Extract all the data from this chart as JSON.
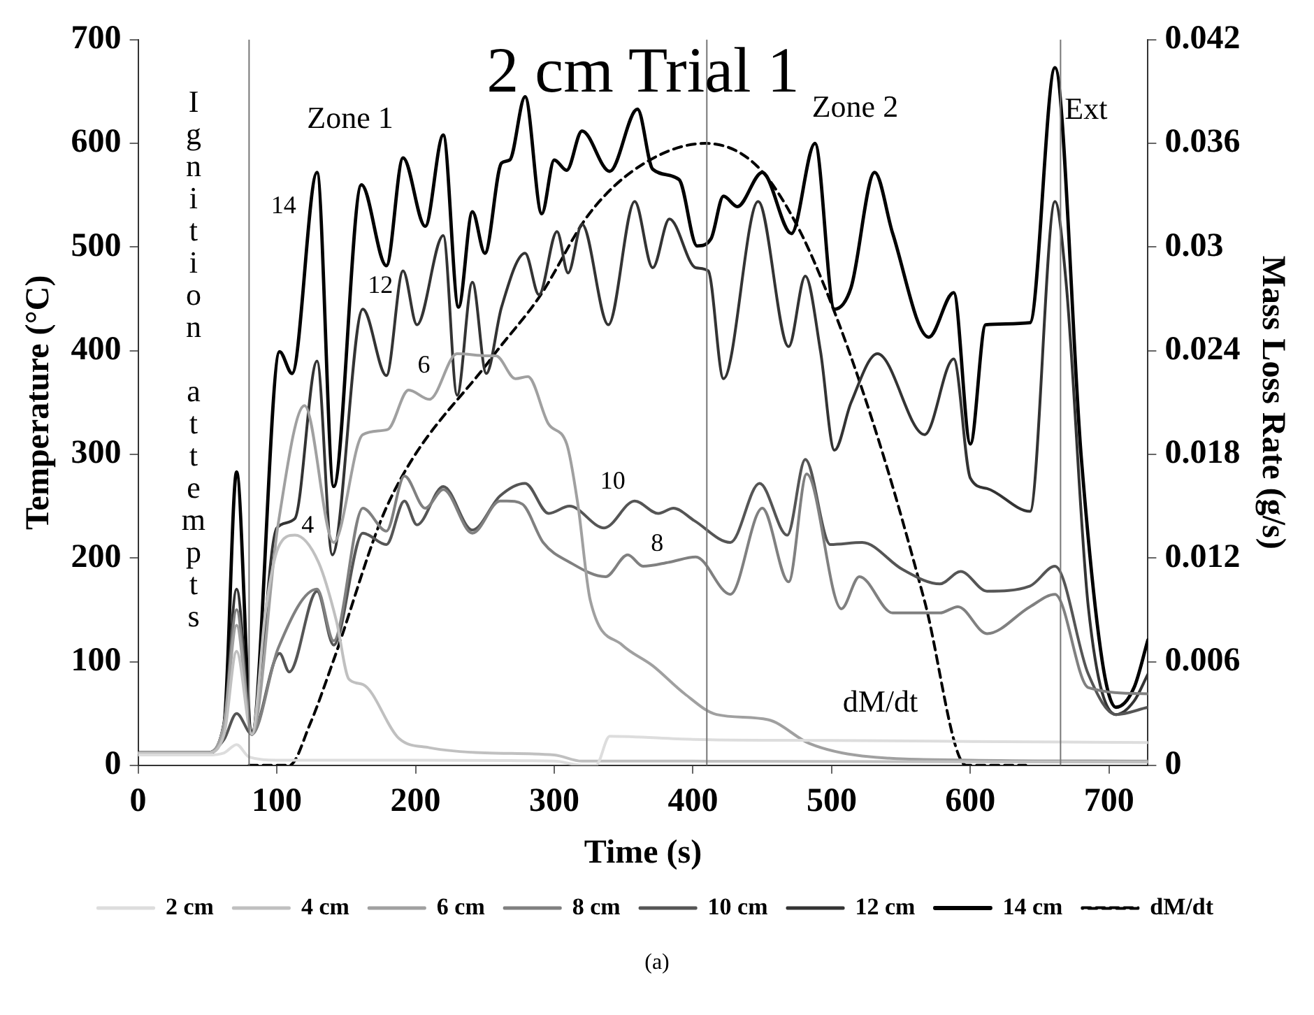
{
  "chart_data": {
    "type": "line",
    "title": "2 cm Trial 1",
    "xlabel": "Time (s)",
    "ylabel": "Temperature (°C)",
    "y2label": "Mass Loss Rate (g/s)",
    "xlim": [
      0,
      728
    ],
    "xticks": [
      0,
      100,
      200,
      300,
      400,
      500,
      600,
      700
    ],
    "ylim": [
      0,
      700
    ],
    "yticks": [
      0,
      100,
      200,
      300,
      400,
      500,
      600,
      700
    ],
    "y2lim": [
      0,
      0.042
    ],
    "y2ticks": [
      0,
      0.006,
      0.012,
      0.018,
      0.024,
      0.03,
      0.036,
      0.042
    ],
    "grid": false,
    "legend": "bottom",
    "marker": "none",
    "series": [
      {
        "name": "2 cm",
        "color": "#dddddd",
        "x": [
          0,
          50,
          62,
          71,
          80,
          100,
          200,
          300,
          320,
          330,
          340,
          400,
          500,
          600,
          728
        ],
        "values": [
          10,
          10,
          12,
          20,
          8,
          5,
          5,
          4,
          0,
          0,
          28,
          25,
          24,
          23,
          22
        ]
      },
      {
        "name": "4 cm",
        "color": "#c0c0c0",
        "x": [
          0,
          50,
          62,
          71,
          82,
          92,
          101,
          113,
          130,
          143,
          152,
          162,
          188,
          210,
          250,
          300,
          320,
          400,
          728
        ],
        "values": [
          12,
          12,
          30,
          110,
          30,
          150,
          210,
          222,
          196,
          139,
          83,
          78,
          26,
          17,
          12,
          10,
          4,
          4,
          3
        ]
      },
      {
        "name": "6 cm",
        "color": "#a0a0a0",
        "x": [
          0,
          50,
          62,
          71,
          82,
          101,
          120,
          141,
          162,
          180,
          195,
          210,
          230,
          252,
          258,
          272,
          281,
          296,
          309,
          317,
          326,
          349,
          371,
          394,
          417,
          454,
          484,
          522,
          600,
          728
        ],
        "values": [
          12,
          12,
          40,
          135,
          30,
          233,
          347,
          215,
          319,
          324,
          362,
          353,
          397,
          395,
          395,
          373,
          375,
          329,
          310,
          252,
          159,
          116,
          96,
          69,
          49,
          44,
          21,
          9,
          5,
          4
        ]
      },
      {
        "name": "8 cm",
        "color": "#808080",
        "x": [
          0,
          50,
          62,
          71,
          82,
          101,
          129,
          141,
          162,
          179,
          192,
          207,
          220,
          241,
          261,
          266,
          277,
          292,
          311,
          337,
          353,
          364,
          383,
          402,
          427,
          450,
          469,
          482,
          507,
          520,
          544,
          578,
          591,
          612,
          643,
          661,
          685,
          728
        ],
        "values": [
          12,
          12,
          40,
          150,
          30,
          113,
          170,
          120,
          248,
          226,
          279,
          248,
          266,
          224,
          255,
          255,
          252,
          215,
          196,
          182,
          203,
          192,
          196,
          201,
          165,
          248,
          177,
          281,
          151,
          182,
          147,
          147,
          153,
          127,
          153,
          165,
          75,
          69
        ]
      },
      {
        "name": "10 cm",
        "color": "#555555",
        "x": [
          0,
          50,
          62,
          71,
          82,
          102,
          109,
          129,
          141,
          162,
          179,
          192,
          201,
          220,
          241,
          261,
          279,
          296,
          311,
          336,
          358,
          375,
          386,
          401,
          427,
          448,
          468,
          481,
          499,
          522,
          551,
          578,
          593,
          612,
          643,
          661,
          685,
          705,
          728
        ],
        "values": [
          12,
          12,
          25,
          50,
          30,
          108,
          90,
          168,
          116,
          224,
          213,
          255,
          232,
          269,
          227,
          260,
          272,
          243,
          250,
          229,
          255,
          243,
          248,
          236,
          215,
          272,
          222,
          295,
          213,
          215,
          189,
          175,
          187,
          168,
          173,
          192,
          88,
          49,
          56
        ]
      },
      {
        "name": "12 cm",
        "color": "#333333",
        "x": [
          0,
          50,
          62,
          71,
          82,
          100,
          113,
          129,
          140,
          162,
          179,
          191,
          201,
          220,
          230,
          241,
          251,
          262,
          279,
          289,
          302,
          310,
          320,
          339,
          358,
          371,
          383,
          402,
          411,
          422,
          447,
          469,
          481,
          492,
          502,
          514,
          533,
          567,
          588,
          600,
          612,
          643,
          661,
          669,
          685,
          705,
          718,
          728
        ],
        "values": [
          12,
          12,
          40,
          170,
          33,
          229,
          238,
          390,
          203,
          440,
          376,
          477,
          425,
          511,
          357,
          466,
          378,
          442,
          494,
          454,
          515,
          475,
          522,
          425,
          544,
          480,
          527,
          480,
          477,
          373,
          544,
          404,
          472,
          399,
          304,
          350,
          397,
          319,
          392,
          277,
          267,
          245,
          544,
          466,
          153,
          49,
          62,
          88
        ]
      },
      {
        "name": "14 cm",
        "color": "#000000",
        "x": [
          0,
          50,
          62,
          71,
          82,
          102,
          111,
          129,
          141,
          161,
          179,
          191,
          207,
          220,
          231,
          241,
          250,
          262,
          268,
          279,
          291,
          300,
          309,
          320,
          340,
          360,
          371,
          390,
          403,
          413,
          422,
          432,
          450,
          471,
          488,
          502,
          514,
          531,
          544,
          570,
          588,
          600,
          611,
          643,
          661,
          680,
          695,
          705,
          718,
          728
        ],
        "values": [
          12,
          12,
          40,
          283,
          30,
          399,
          378,
          572,
          269,
          560,
          482,
          586,
          520,
          608,
          442,
          534,
          494,
          581,
          584,
          645,
          532,
          584,
          574,
          612,
          573,
          633,
          575,
          565,
          501,
          508,
          549,
          539,
          572,
          513,
          600,
          440,
          461,
          572,
          513,
          413,
          456,
          310,
          425,
          427,
          673,
          296,
          101,
          56,
          75,
          121
        ]
      },
      {
        "name": "dM/dt",
        "color": "#000000",
        "axis": "y2",
        "line_style": "dashed",
        "x": [
          80,
          109,
          124,
          141,
          180,
          255,
          290,
          325,
          362,
          409,
          446,
          476,
          506,
          537,
          567,
          597,
          640
        ],
        "values": [
          0,
          0,
          0.0024,
          0.0061,
          0.0151,
          0.0236,
          0.0272,
          0.0319,
          0.0347,
          0.036,
          0.0347,
          0.0311,
          0.0254,
          0.018,
          0.0095,
          0,
          0
        ]
      }
    ],
    "ref_lines": [
      {
        "axis": "x",
        "value": 80,
        "label": "Ignition attempts",
        "color": "#777777"
      },
      {
        "axis": "x",
        "value": 410,
        "color": "#777777"
      },
      {
        "axis": "x",
        "value": 665,
        "label": "Ext",
        "color": "#777777"
      }
    ],
    "annotations": [
      "Zone 1",
      "Zone 2",
      "14",
      "12",
      "6",
      "4",
      "10",
      "8",
      "dM/dt",
      "(a)"
    ]
  }
}
